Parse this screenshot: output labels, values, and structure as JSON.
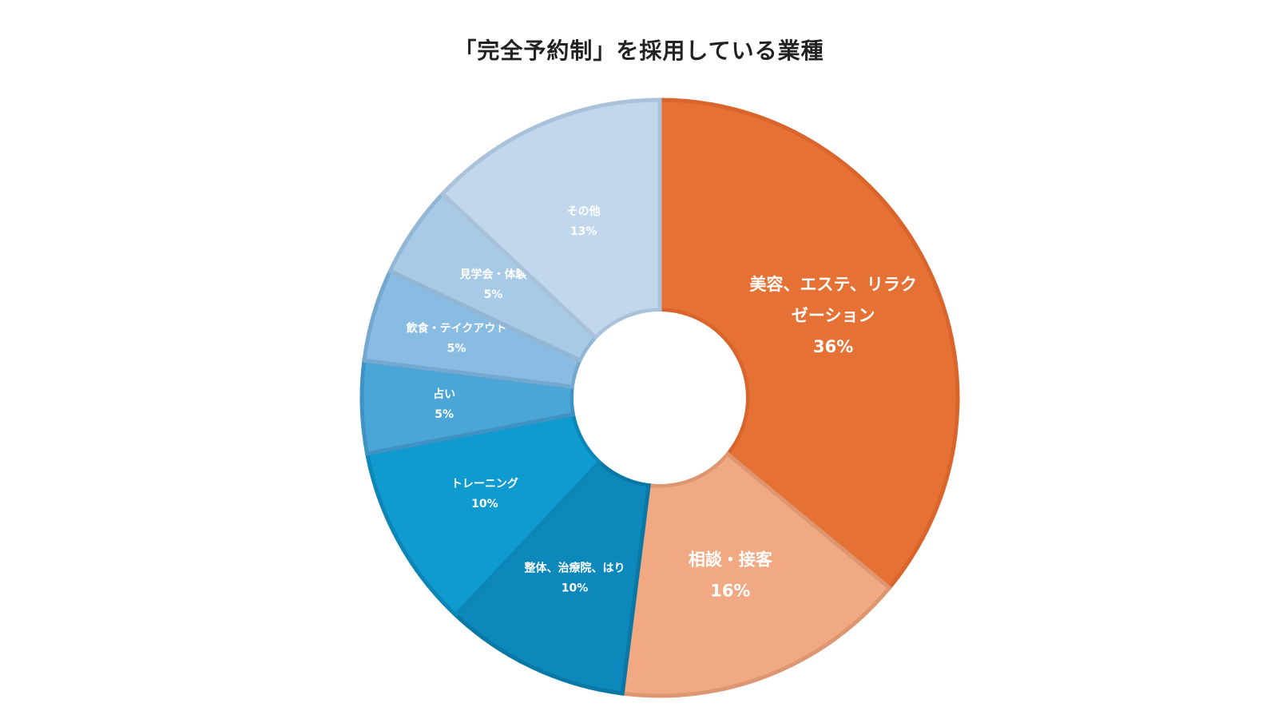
{
  "chart_data": {
    "type": "pie",
    "donut": true,
    "title": "「完全予約制」を採用している業種",
    "slices": [
      {
        "label_lines": [
          "美容、エステ、リラク",
          "ゼーション"
        ],
        "value": 36,
        "value_label": "36%",
        "color": "#E67134",
        "stroke": "#D9652D"
      },
      {
        "label_lines": [
          "相談・接客"
        ],
        "value": 16,
        "value_label": "16%",
        "color": "#F0A983",
        "stroke": "#DE9670"
      },
      {
        "label_lines": [
          "整体、治療院、はり"
        ],
        "value": 10,
        "value_label": "10%",
        "color": "#0C88BB",
        "stroke": "#0A78A6"
      },
      {
        "label_lines": [
          "トレーニング"
        ],
        "value": 10,
        "value_label": "10%",
        "color": "#0F9BD0",
        "stroke": "#0C86B6"
      },
      {
        "label_lines": [
          "占い"
        ],
        "value": 5,
        "value_label": "5%",
        "color": "#4BA6D8",
        "stroke": "#3E93C4"
      },
      {
        "label_lines": [
          "飲食・テイクアウト"
        ],
        "value": 5,
        "value_label": "5%",
        "color": "#88BCE2",
        "stroke": "#74A8CE"
      },
      {
        "label_lines": [
          "見学会・体験"
        ],
        "value": 5,
        "value_label": "5%",
        "color": "#A7CAE6",
        "stroke": "#92B6D3"
      },
      {
        "label_lines": [
          "その他"
        ],
        "value": 13,
        "value_label": "13%",
        "color": "#C0D7EC",
        "stroke": "#A9C2DA"
      }
    ]
  }
}
